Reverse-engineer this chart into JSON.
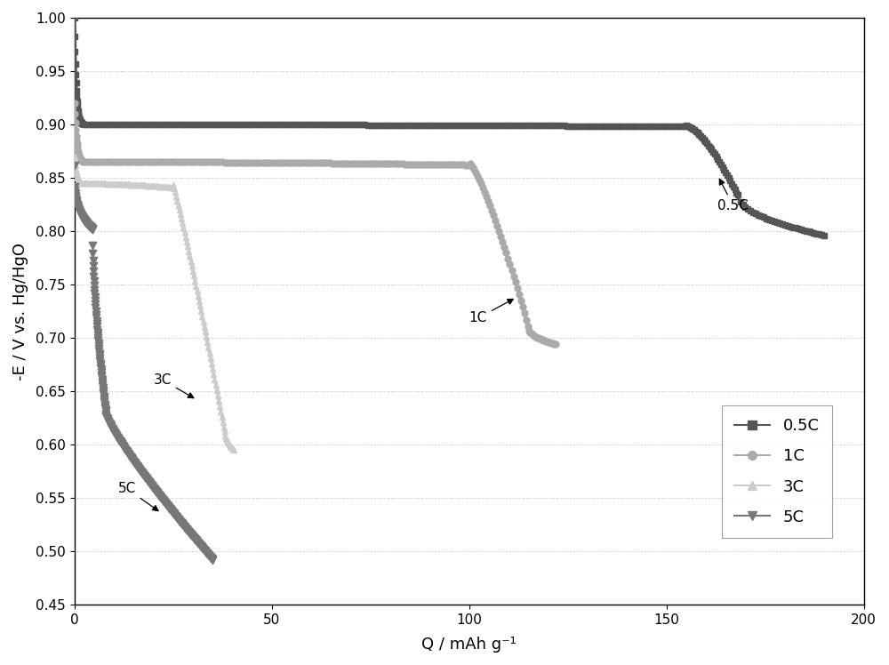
{
  "title": "",
  "xlabel": "Q / mAh g⁻¹",
  "ylabel": "-E / V vs. Hg/HgO",
  "xlim": [
    0,
    200
  ],
  "ylim": [
    0.45,
    1.0
  ],
  "xticks": [
    0,
    50,
    100,
    150,
    200
  ],
  "yticks": [
    0.45,
    0.5,
    0.55,
    0.6,
    0.65,
    0.7,
    0.75,
    0.8,
    0.85,
    0.9,
    0.95,
    1.0
  ],
  "background_color": "#ffffff",
  "grid_color": "#bbbbbb",
  "curves": {
    "0.5C": {
      "color": "#555555",
      "marker": "s",
      "linewidth": 3.0
    },
    "1C": {
      "color": "#aaaaaa",
      "marker": "o",
      "linewidth": 3.0
    },
    "3C": {
      "color": "#cccccc",
      "marker": "^",
      "linewidth": 3.0
    },
    "5C": {
      "color": "#777777",
      "marker": "v",
      "linewidth": 1.0
    }
  },
  "legend_entries": [
    "0.5C",
    "1C",
    "3C",
    "5C"
  ],
  "legend_markers": [
    "s",
    "o",
    "^",
    "v"
  ],
  "legend_colors": [
    "#555555",
    "#aaaaaa",
    "#cccccc",
    "#777777"
  ]
}
